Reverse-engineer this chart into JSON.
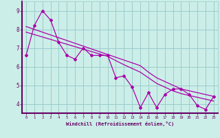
{
  "xlabel": "Windchill (Refroidissement éolien,°C)",
  "background_color": "#cceee8",
  "line_color": "#aa00aa",
  "grid_color": "#99cccc",
  "axis_border_color": "#660066",
  "x_data": [
    0,
    1,
    2,
    3,
    4,
    5,
    6,
    7,
    8,
    9,
    10,
    11,
    12,
    13,
    14,
    15,
    16,
    17,
    18,
    19,
    20,
    21,
    22,
    23
  ],
  "y_main": [
    6.6,
    8.2,
    9.0,
    8.5,
    7.3,
    6.6,
    6.4,
    7.0,
    6.6,
    6.6,
    6.6,
    5.4,
    5.5,
    4.9,
    3.8,
    4.6,
    3.8,
    4.5,
    4.8,
    4.8,
    4.5,
    3.9,
    3.7,
    4.4
  ],
  "y_trend1": [
    8.15,
    8.0,
    7.85,
    7.7,
    7.55,
    7.4,
    7.25,
    7.1,
    6.95,
    6.8,
    6.65,
    6.5,
    6.35,
    6.2,
    6.05,
    5.7,
    5.4,
    5.2,
    5.0,
    4.8,
    4.7,
    4.6,
    4.5,
    4.4
  ],
  "y_trend2": [
    7.85,
    7.72,
    7.59,
    7.46,
    7.33,
    7.2,
    7.07,
    6.94,
    6.81,
    6.68,
    6.55,
    6.32,
    6.1,
    5.9,
    5.7,
    5.4,
    5.1,
    4.9,
    4.7,
    4.55,
    4.45,
    4.35,
    4.25,
    4.15
  ],
  "ylim": [
    3.5,
    9.5
  ],
  "yticks": [
    4,
    5,
    6,
    7,
    8,
    9
  ],
  "xlim": [
    -0.5,
    23.5
  ],
  "xticks": [
    0,
    1,
    2,
    3,
    4,
    5,
    6,
    7,
    8,
    9,
    10,
    11,
    12,
    13,
    14,
    15,
    16,
    17,
    18,
    19,
    20,
    21,
    22,
    23
  ]
}
